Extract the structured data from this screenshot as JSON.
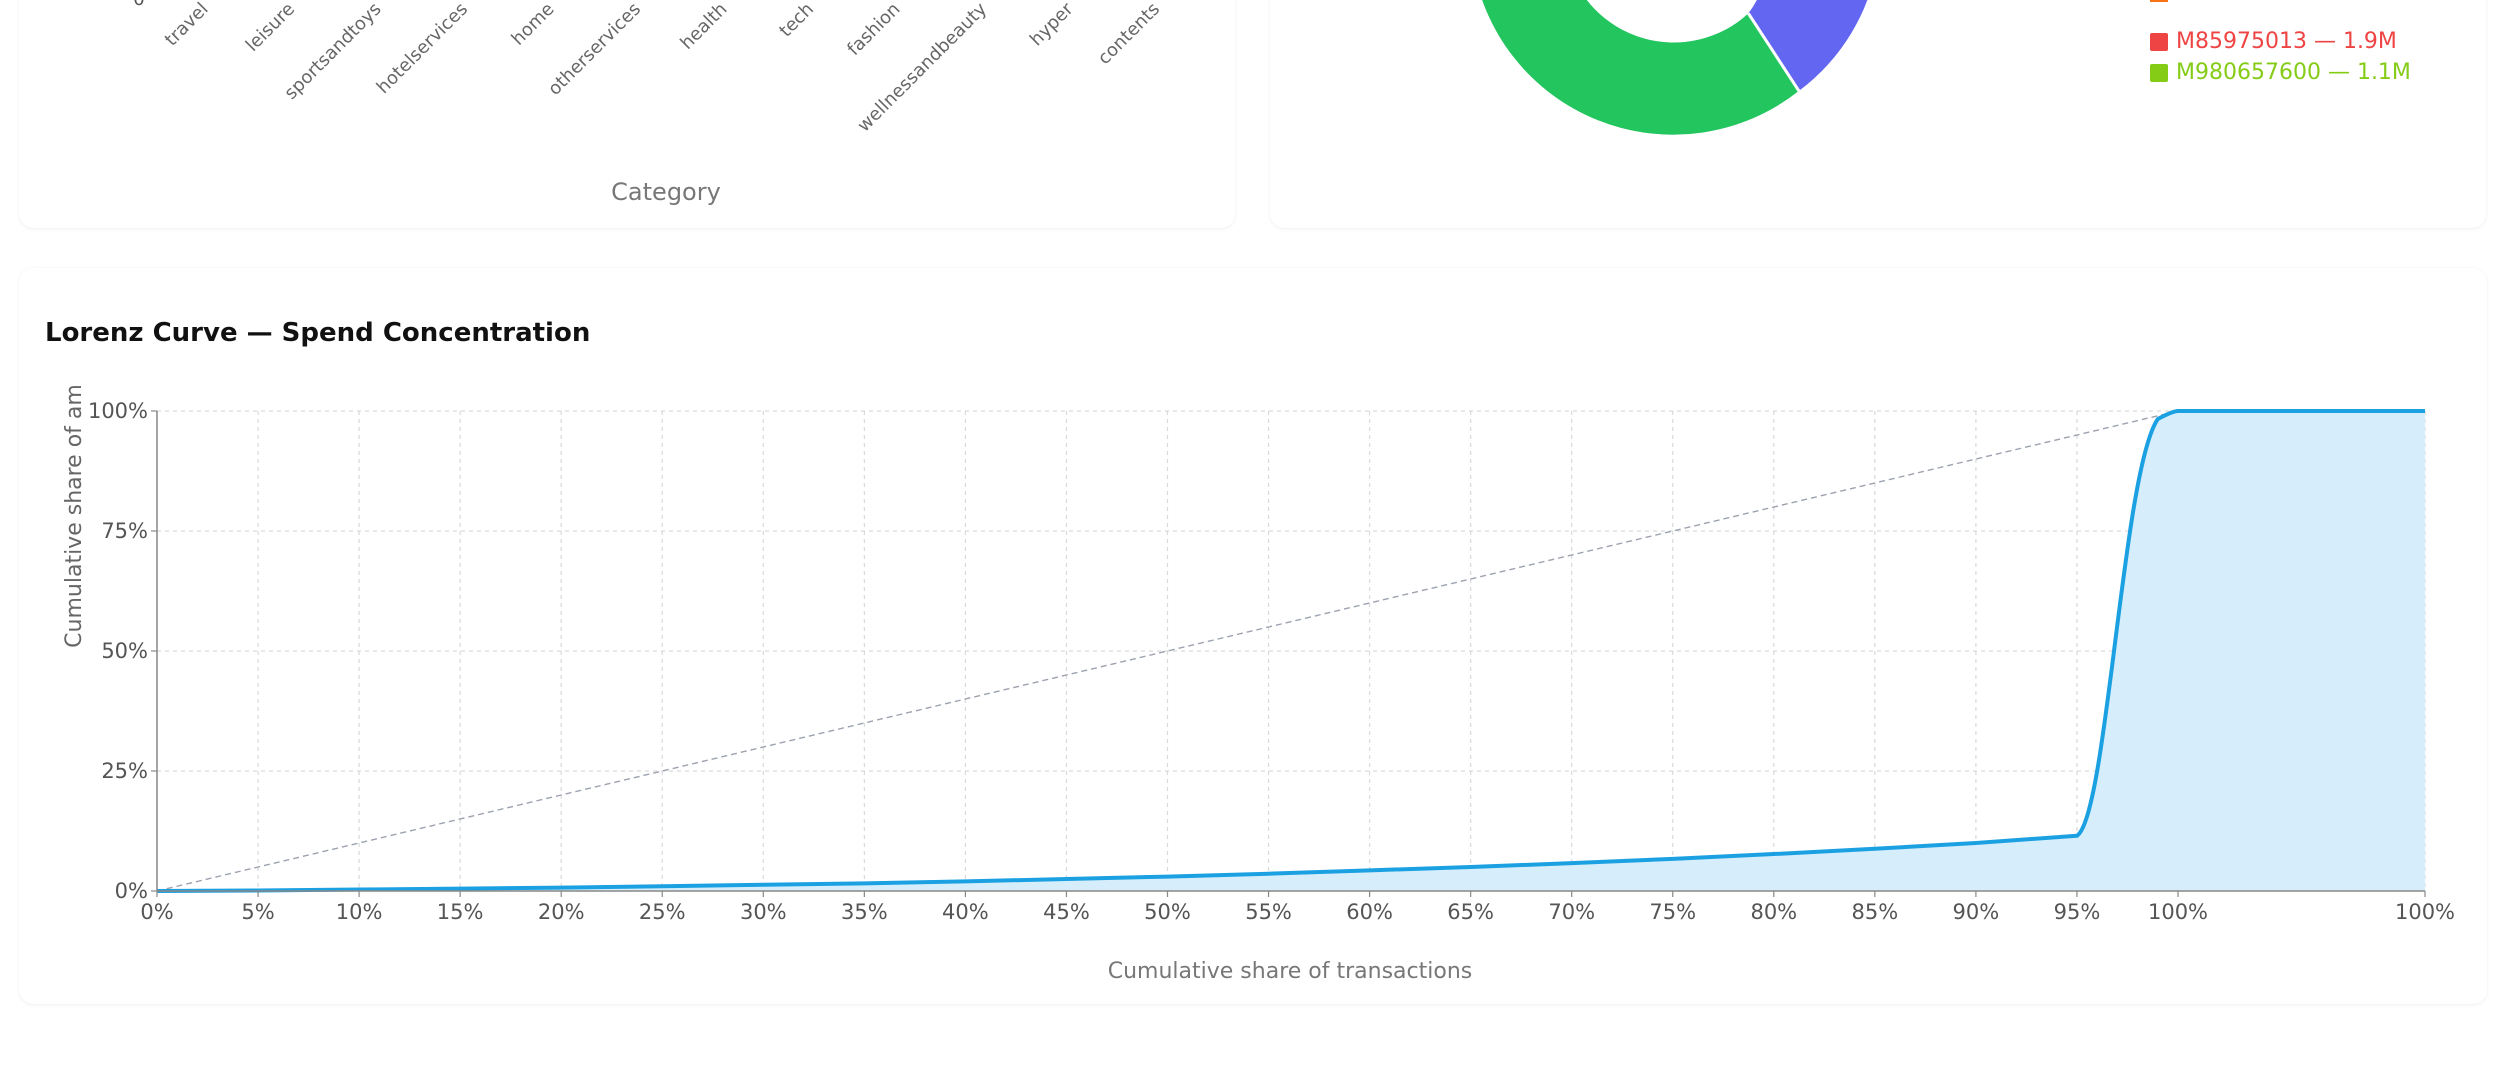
{
  "category_card": {
    "xlabel": "Category",
    "tick_zero": "0",
    "categories": [
      "travel",
      "leisure",
      "sportsandtoys",
      "hotelservices",
      "home",
      "otherservices",
      "health",
      "tech",
      "fashion",
      "wellnessandbeauty",
      "hyper",
      "contents"
    ]
  },
  "merchant_card": {
    "legend": [
      {
        "label": "M85975013 — 1.9M",
        "color": "#ef4444"
      },
      {
        "label": "M980657600 — 1.1M",
        "color": "#84cc16"
      }
    ],
    "partial_legend_color": "#f97316",
    "donut_colors": {
      "green": "#22c55e",
      "purple": "#6366f1"
    }
  },
  "lorenz_card": {
    "title": "Lorenz Curve — Spend Concentration"
  },
  "chart_data": {
    "type": "area",
    "title": "Lorenz Curve — Spend Concentration",
    "xlabel": "Cumulative share of transactions",
    "ylabel": "Cumulative share of amount",
    "ylabel_visible": "Cumulative share of am",
    "x_ticks": [
      "0%",
      "5%",
      "10%",
      "15%",
      "20%",
      "25%",
      "30%",
      "35%",
      "40%",
      "45%",
      "50%",
      "55%",
      "60%",
      "65%",
      "70%",
      "75%",
      "80%",
      "85%",
      "90%",
      "95%",
      "100%",
      "100%"
    ],
    "y_ticks": [
      "0%",
      "25%",
      "50%",
      "75%",
      "100%"
    ],
    "ylim": [
      0,
      100
    ],
    "grid": true,
    "series": [
      {
        "name": "",
        "color": "#1ba1e2",
        "fill": "#d6eefb",
        "x": [
          0,
          5,
          10,
          15,
          20,
          25,
          30,
          35,
          40,
          45,
          50,
          55,
          60,
          65,
          70,
          75,
          80,
          85,
          90,
          95,
          100,
          100
        ],
        "y": [
          0,
          0.1,
          0.3,
          0.5,
          0.7,
          1.0,
          1.3,
          1.6,
          2.0,
          2.5,
          3.0,
          3.6,
          4.3,
          5.0,
          5.8,
          6.7,
          7.7,
          8.8,
          10.0,
          11.5,
          100,
          100
        ]
      }
    ],
    "equality_line": {
      "color": "#9ca3af",
      "from": [
        0,
        0
      ],
      "to": [
        100,
        100
      ]
    }
  }
}
